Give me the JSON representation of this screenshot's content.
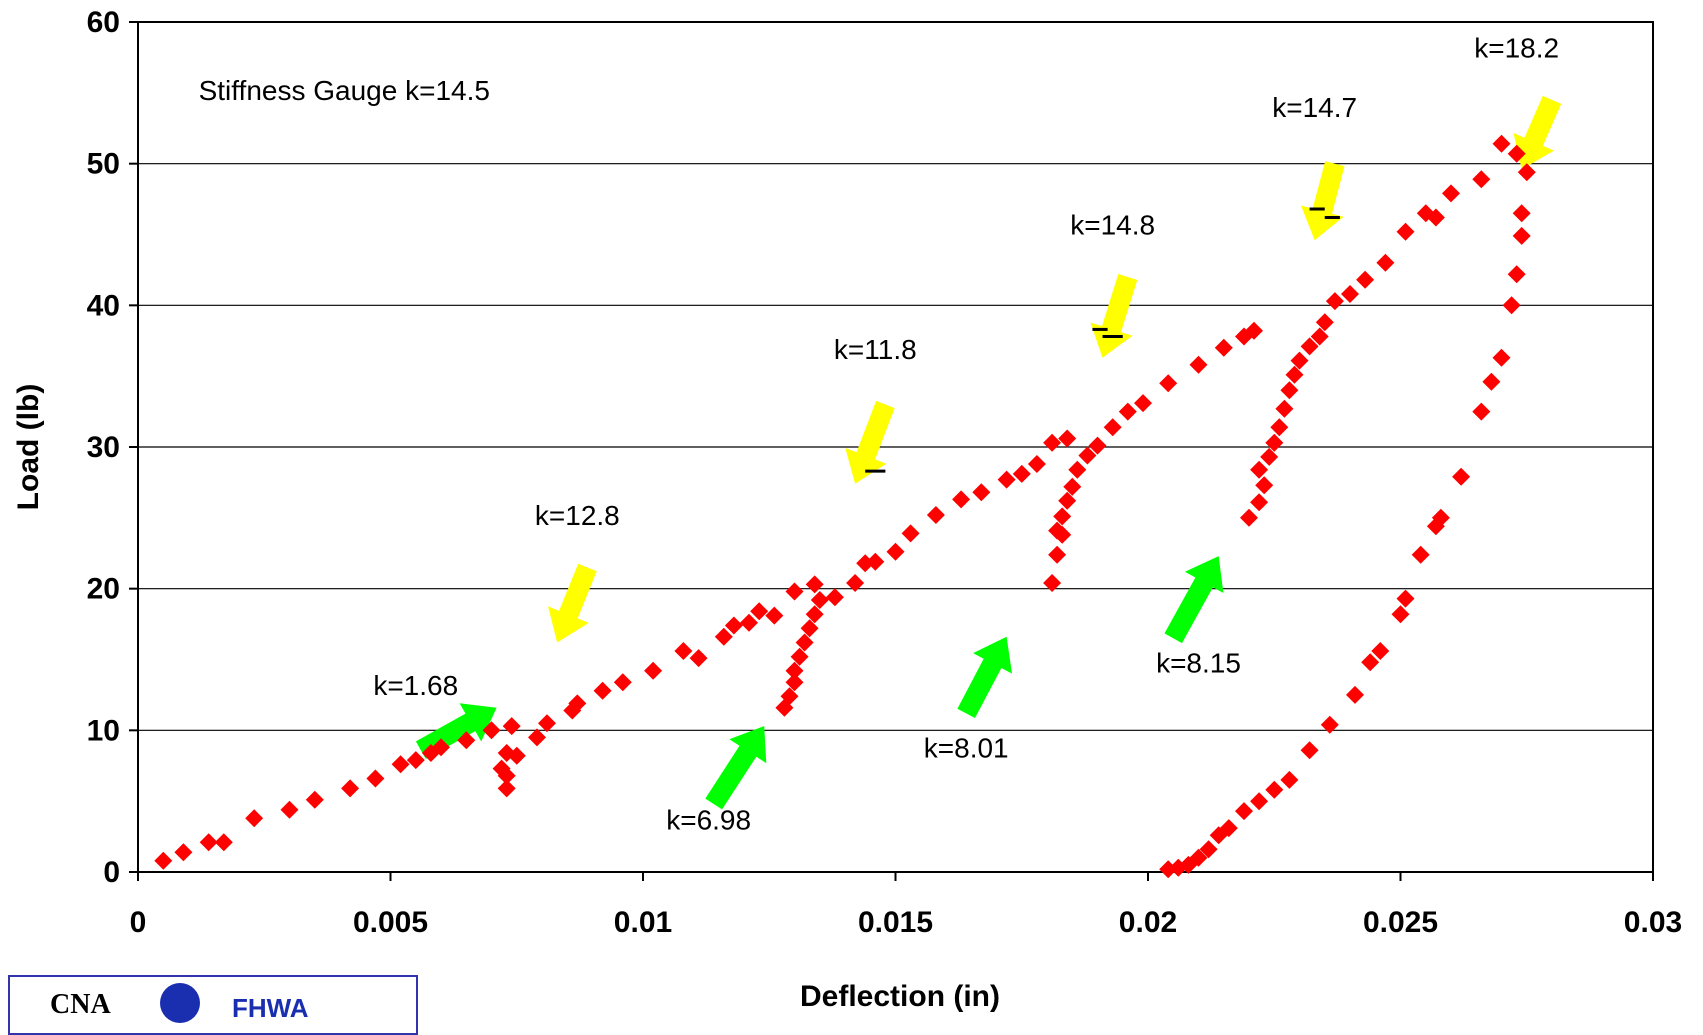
{
  "chart_data": {
    "type": "scatter",
    "xlabel": "Deflection (in)",
    "ylabel": "Load (lb)",
    "xlim": [
      0,
      0.03
    ],
    "ylim": [
      0,
      60
    ],
    "x_ticks": [
      "0",
      "0.005",
      "0.01",
      "0.015",
      "0.02",
      "0.025",
      "0.03"
    ],
    "y_ticks": [
      "0",
      "10",
      "20",
      "30",
      "40",
      "50",
      "60"
    ],
    "grid": "horizontal",
    "marker_color": "#ff0000",
    "series": [
      {
        "points": [
          [
            0.0005,
            0.8
          ],
          [
            0.0009,
            1.4
          ],
          [
            0.0014,
            2.1
          ],
          [
            0.0017,
            2.1
          ],
          [
            0.0023,
            3.8
          ],
          [
            0.003,
            4.4
          ],
          [
            0.0035,
            5.1
          ],
          [
            0.0042,
            5.9
          ],
          [
            0.0047,
            6.6
          ],
          [
            0.0052,
            7.6
          ],
          [
            0.0055,
            7.9
          ],
          [
            0.0058,
            8.4
          ],
          [
            0.006,
            8.8
          ],
          [
            0.0065,
            9.3
          ],
          [
            0.007,
            10.0
          ],
          [
            0.0074,
            10.3
          ],
          [
            0.0073,
            8.4
          ],
          [
            0.0072,
            7.3
          ],
          [
            0.0073,
            6.8
          ],
          [
            0.0073,
            5.9
          ],
          [
            0.0075,
            8.2
          ],
          [
            0.0079,
            9.5
          ],
          [
            0.0081,
            10.5
          ],
          [
            0.0086,
            11.4
          ],
          [
            0.0087,
            11.9
          ],
          [
            0.0092,
            12.8
          ],
          [
            0.0096,
            13.4
          ],
          [
            0.0102,
            14.2
          ],
          [
            0.0108,
            15.6
          ],
          [
            0.0111,
            15.1
          ],
          [
            0.0116,
            16.6
          ],
          [
            0.0118,
            17.4
          ],
          [
            0.0121,
            17.6
          ],
          [
            0.0123,
            18.4
          ],
          [
            0.0126,
            18.1
          ],
          [
            0.013,
            19.8
          ],
          [
            0.0128,
            11.6
          ],
          [
            0.0129,
            12.4
          ],
          [
            0.013,
            13.4
          ],
          [
            0.013,
            14.2
          ],
          [
            0.0131,
            15.2
          ],
          [
            0.0132,
            16.2
          ],
          [
            0.0133,
            17.2
          ],
          [
            0.0134,
            18.2
          ],
          [
            0.0135,
            19.2
          ],
          [
            0.0134,
            20.3
          ],
          [
            0.0138,
            19.4
          ],
          [
            0.0142,
            20.4
          ],
          [
            0.0144,
            21.8
          ],
          [
            0.0146,
            21.9
          ],
          [
            0.015,
            22.6
          ],
          [
            0.0153,
            23.9
          ],
          [
            0.0158,
            25.2
          ],
          [
            0.0163,
            26.3
          ],
          [
            0.0167,
            26.8
          ],
          [
            0.0172,
            27.7
          ],
          [
            0.0175,
            28.1
          ],
          [
            0.0178,
            28.8
          ],
          [
            0.0181,
            30.3
          ],
          [
            0.0184,
            30.6
          ],
          [
            0.0181,
            20.4
          ],
          [
            0.0182,
            22.4
          ],
          [
            0.0183,
            23.8
          ],
          [
            0.0182,
            24.1
          ],
          [
            0.0183,
            25.1
          ],
          [
            0.0184,
            26.2
          ],
          [
            0.0185,
            27.2
          ],
          [
            0.0186,
            28.4
          ],
          [
            0.0188,
            29.4
          ],
          [
            0.019,
            30.1
          ],
          [
            0.0193,
            31.4
          ],
          [
            0.0196,
            32.5
          ],
          [
            0.0199,
            33.1
          ],
          [
            0.0204,
            34.5
          ],
          [
            0.021,
            35.8
          ],
          [
            0.0215,
            37.0
          ],
          [
            0.0219,
            37.8
          ],
          [
            0.0221,
            38.2
          ],
          [
            0.022,
            25.0
          ],
          [
            0.0222,
            26.1
          ],
          [
            0.0223,
            27.3
          ],
          [
            0.0222,
            28.4
          ],
          [
            0.0224,
            29.3
          ],
          [
            0.0225,
            30.3
          ],
          [
            0.0226,
            31.4
          ],
          [
            0.0227,
            32.7
          ],
          [
            0.0228,
            34.0
          ],
          [
            0.0229,
            35.1
          ],
          [
            0.023,
            36.1
          ],
          [
            0.0232,
            37.1
          ],
          [
            0.0234,
            37.8
          ],
          [
            0.0235,
            38.8
          ],
          [
            0.0237,
            40.3
          ],
          [
            0.024,
            40.8
          ],
          [
            0.0243,
            41.8
          ],
          [
            0.0247,
            43.0
          ],
          [
            0.0251,
            45.2
          ],
          [
            0.0255,
            46.5
          ],
          [
            0.0257,
            46.2
          ],
          [
            0.026,
            47.9
          ],
          [
            0.0266,
            48.9
          ],
          [
            0.027,
            51.4
          ],
          [
            0.0273,
            50.7
          ],
          [
            0.0275,
            49.4
          ],
          [
            0.0274,
            46.5
          ],
          [
            0.0274,
            44.9
          ],
          [
            0.0273,
            42.2
          ],
          [
            0.0272,
            40.0
          ],
          [
            0.027,
            36.3
          ],
          [
            0.0268,
            34.6
          ],
          [
            0.0266,
            32.5
          ],
          [
            0.0262,
            27.9
          ],
          [
            0.0258,
            25.0
          ],
          [
            0.0257,
            24.4
          ],
          [
            0.0254,
            22.4
          ],
          [
            0.0251,
            19.3
          ],
          [
            0.025,
            18.2
          ],
          [
            0.0246,
            15.6
          ],
          [
            0.0244,
            14.8
          ],
          [
            0.0241,
            12.5
          ],
          [
            0.0236,
            10.4
          ],
          [
            0.0232,
            8.6
          ],
          [
            0.0228,
            6.5
          ],
          [
            0.0225,
            5.8
          ],
          [
            0.0222,
            5.0
          ],
          [
            0.0219,
            4.3
          ],
          [
            0.0216,
            3.1
          ],
          [
            0.0214,
            2.6
          ],
          [
            0.0212,
            1.6
          ],
          [
            0.021,
            1.0
          ],
          [
            0.0208,
            0.5
          ],
          [
            0.0206,
            0.3
          ],
          [
            0.0204,
            0.2
          ]
        ]
      }
    ],
    "annotations": [
      {
        "text": "Stiffness Gauge k=14.5",
        "x": 0.0012,
        "y": 54.5
      },
      {
        "text": "k=1.68",
        "x": 0.0055,
        "y": 12.5,
        "arrow": "green",
        "arrow_from": [
          0.0056,
          8.6
        ],
        "arrow_to": [
          0.0071,
          11.6
        ]
      },
      {
        "text": "k=12.8",
        "x": 0.0087,
        "y": 24.5,
        "arrow": "yellow",
        "arrow_from": [
          0.0089,
          21.5
        ],
        "arrow_to": [
          0.0083,
          16.2
        ]
      },
      {
        "text": "k=6.98",
        "x": 0.0113,
        "y": 3.0,
        "arrow": "green",
        "arrow_from": [
          0.0114,
          4.8
        ],
        "arrow_to": [
          0.0124,
          10.3
        ]
      },
      {
        "text": "k=11.8",
        "x": 0.0146,
        "y": 36.2,
        "arrow": "yellow",
        "arrow_from": [
          0.0148,
          33.0
        ],
        "arrow_to": [
          0.0142,
          27.4
        ]
      },
      {
        "text": "k=8.01",
        "x": 0.0164,
        "y": 8.1,
        "arrow": "green",
        "arrow_from": [
          0.0164,
          11.2
        ],
        "arrow_to": [
          0.0172,
          16.6
        ]
      },
      {
        "text": "k=14.8",
        "x": 0.0193,
        "y": 45.0,
        "arrow": "yellow",
        "arrow_from": [
          0.0196,
          42.0
        ],
        "arrow_to": [
          0.0191,
          36.3
        ]
      },
      {
        "text": "k=8.15",
        "x": 0.021,
        "y": 14.1,
        "arrow": "green",
        "arrow_from": [
          0.0205,
          16.5
        ],
        "arrow_to": [
          0.0214,
          22.3
        ]
      },
      {
        "text": "k=14.7",
        "x": 0.0233,
        "y": 53.3,
        "arrow": "yellow",
        "arrow_from": [
          0.0237,
          50.0
        ],
        "arrow_to": [
          0.0233,
          44.6
        ]
      },
      {
        "text": "k=18.2",
        "x": 0.0273,
        "y": 57.5,
        "arrow": "yellow",
        "arrow_from": [
          0.028,
          54.5
        ],
        "arrow_to": [
          0.0274,
          49.6
        ]
      }
    ],
    "dashes": [
      [
        0.0144,
        0.0148,
        28.3
      ],
      [
        0.0189,
        0.0192,
        38.3
      ],
      [
        0.0191,
        0.0195,
        37.8
      ],
      [
        0.0232,
        0.0235,
        46.8
      ],
      [
        0.0235,
        0.0238,
        46.2
      ]
    ],
    "arrow_colors": {
      "green": "#00ff00",
      "yellow": "#ffff00"
    }
  },
  "logo": {
    "left_text": "CNA",
    "right_text": "FHWA"
  }
}
